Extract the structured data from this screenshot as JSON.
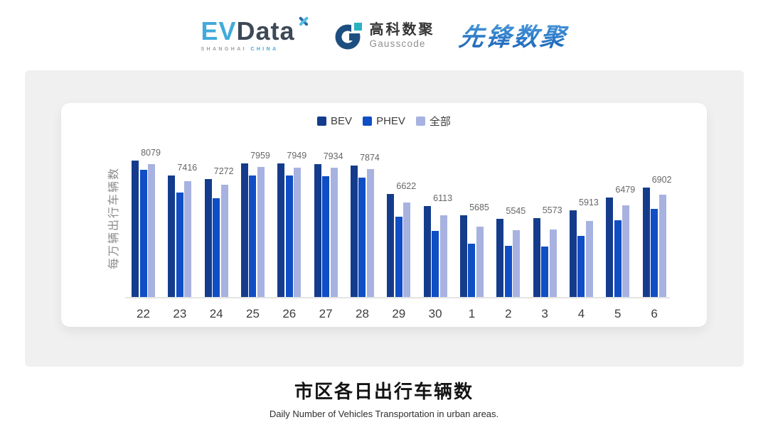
{
  "header": {
    "logos": {
      "evdata": {
        "ev": "EV",
        "rest": "Data",
        "sub_left": "SHANGHAI",
        "sub_right": "CHINA"
      },
      "gausscode": {
        "cn": "高科数聚",
        "en": "Gausscode"
      },
      "pioneer": {
        "text": "先锋数聚"
      }
    }
  },
  "colors": {
    "bev": "#153c8c",
    "phev": "#0f4ec5",
    "all": "#a8b2e0",
    "panel_bg": "#f0f0f0",
    "axis_line": "#e4e4e4",
    "evdata_blue": "#41aadb",
    "gausscode_navy": "#1d4e80",
    "gausscode_teal": "#29b3c0",
    "pioneer_blue": "#2e7cc9"
  },
  "chart_data": {
    "type": "bar",
    "title": "市区各日出行车辆数",
    "subtitle": "Daily Number of Vehicles Transportation in urban areas.",
    "ylabel": "每万辆出行车辆数",
    "xlabel": "",
    "categories": [
      "22",
      "23",
      "24",
      "25",
      "26",
      "27",
      "28",
      "29",
      "30",
      "1",
      "2",
      "3",
      "4",
      "5",
      "6"
    ],
    "series": [
      {
        "name": "BEV",
        "color": "#153c8c",
        "values": [
          8079,
          7416,
          7272,
          7959,
          7949,
          7934,
          7874,
          6622,
          6113,
          5685,
          5545,
          5573,
          5913,
          6479,
          6902
        ]
      },
      {
        "name": "PHEV",
        "color": "#0f4ec5",
        "values": [
          7680,
          6695,
          6450,
          7430,
          7420,
          7390,
          7340,
          5640,
          5000,
          4455,
          4350,
          4320,
          4785,
          5490,
          5975
        ]
      },
      {
        "name": "全部",
        "color": "#a8b2e0",
        "values": [
          7925,
          7180,
          7015,
          7810,
          7770,
          7760,
          7700,
          6260,
          5695,
          5200,
          5045,
          5075,
          5435,
          6140,
          6595
        ]
      }
    ],
    "data_labels": [
      8079,
      7416,
      7272,
      7959,
      7949,
      7934,
      7874,
      6622,
      6113,
      5685,
      5545,
      5573,
      5913,
      6479,
      6902
    ],
    "data_labels_note": "one value label per day, shown above each group; equals BEV series; PHEV and 全部 values are estimated from bar heights",
    "ylim": [
      2130,
      8079
    ],
    "grid": false,
    "y_ticks_visible": false,
    "legend_position": "top-center"
  }
}
